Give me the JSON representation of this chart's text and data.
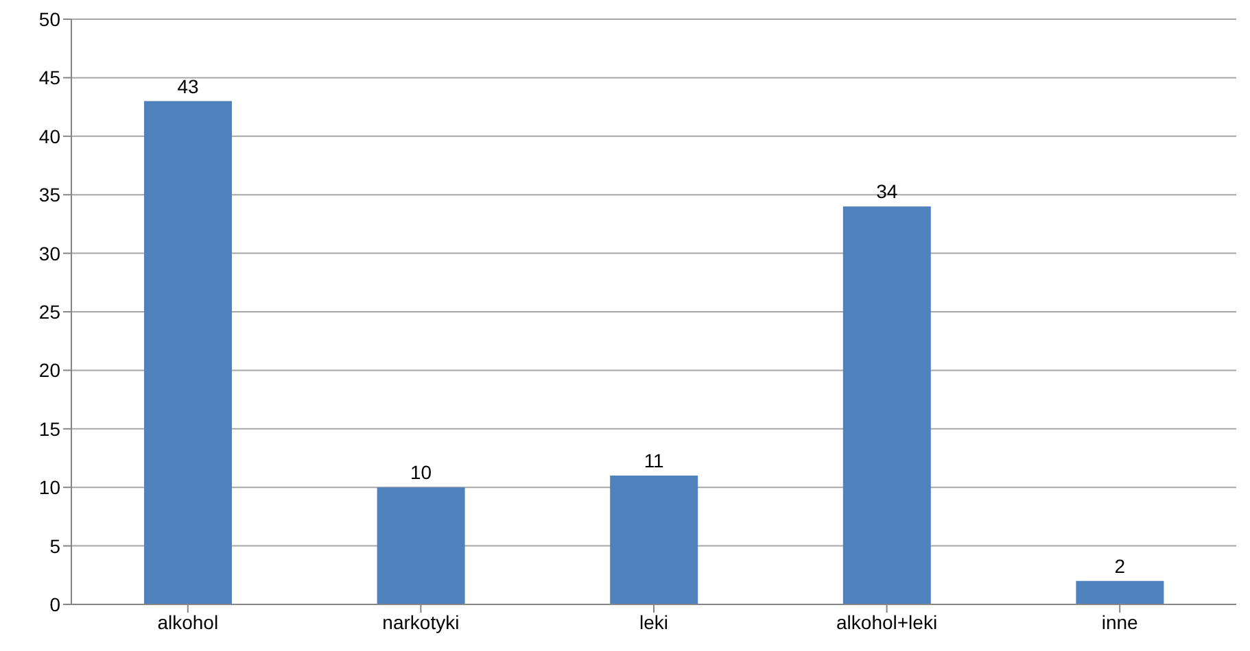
{
  "chart_data": {
    "type": "bar",
    "categories": [
      "alkohol",
      "narkotyki",
      "leki",
      "alkohol+leki",
      "inne"
    ],
    "values": [
      43,
      10,
      11,
      34,
      2
    ],
    "color": "#4f81bd",
    "ylim": [
      0,
      50
    ],
    "yticks": [
      0,
      5,
      10,
      15,
      20,
      25,
      30,
      35,
      40,
      45,
      50
    ],
    "grid": "y",
    "data_labels": true
  }
}
